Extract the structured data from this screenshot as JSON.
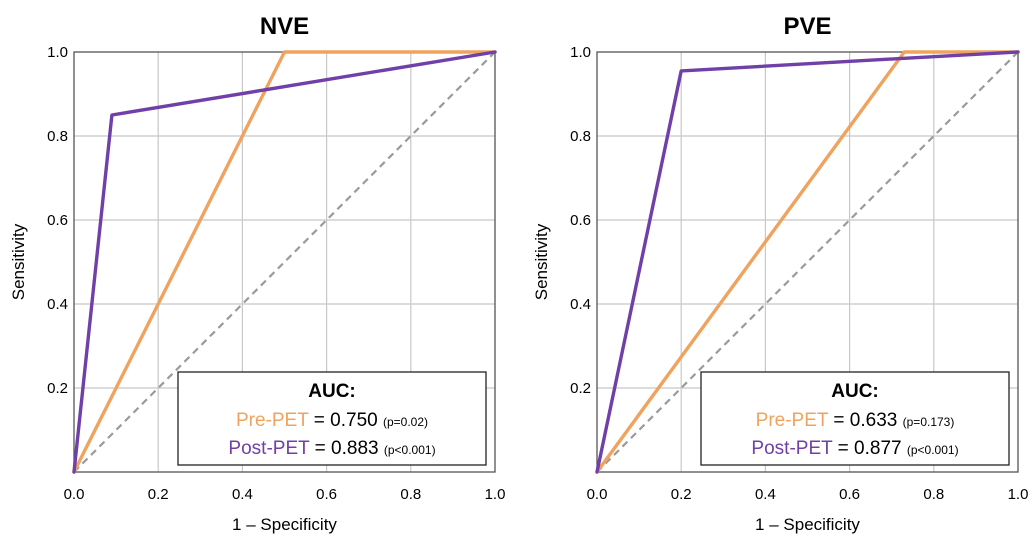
{
  "chart_data": [
    {
      "type": "line",
      "title": "NVE",
      "xlabel": "1 – Specificity",
      "ylabel": "Sensitivity",
      "xlim": [
        0,
        1
      ],
      "ylim": [
        0,
        1
      ],
      "x_ticks": [
        "0.0",
        "0.2",
        "0.4",
        "0.6",
        "0.8",
        "1.0"
      ],
      "y_ticks": [
        "0.2",
        "0.4",
        "0.6",
        "0.8",
        "1.0"
      ],
      "grid": true,
      "series": [
        {
          "key": "pre",
          "color": "#f0a35e",
          "points": [
            [
              0,
              0
            ],
            [
              0.5,
              1.0
            ],
            [
              1.0,
              1.0
            ]
          ]
        },
        {
          "key": "post",
          "color": "#7040a8",
          "points": [
            [
              0,
              0
            ],
            [
              0.09,
              0.85
            ],
            [
              1.0,
              1.0
            ]
          ]
        }
      ],
      "reference_line": [
        [
          0,
          0
        ],
        [
          1,
          1
        ]
      ],
      "legend": {
        "placement": "bottom-right",
        "title": "AUC:",
        "entries": [
          {
            "name": "Pre-PET",
            "eq": " = 0.750 ",
            "p": "(p=0.02)",
            "color": "#f0a35e"
          },
          {
            "name": "Post-PET",
            "eq": " = 0.883 ",
            "p": "(p<0.001)",
            "color": "#7040a8"
          }
        ]
      }
    },
    {
      "type": "line",
      "title": "PVE",
      "xlabel": "1 – Specificity",
      "ylabel": "Sensitivity",
      "xlim": [
        0,
        1
      ],
      "ylim": [
        0,
        1
      ],
      "x_ticks": [
        "0.0",
        "0.2",
        "0.4",
        "0.6",
        "0.8",
        "1.0"
      ],
      "y_ticks": [
        "0.2",
        "0.4",
        "0.6",
        "0.8",
        "1.0"
      ],
      "grid": true,
      "series": [
        {
          "key": "pre",
          "color": "#f0a35e",
          "points": [
            [
              0,
              0
            ],
            [
              0.73,
              1.0
            ],
            [
              1.0,
              1.0
            ]
          ]
        },
        {
          "key": "post",
          "color": "#7040a8",
          "points": [
            [
              0,
              0
            ],
            [
              0.2,
              0.955
            ],
            [
              0.73,
              0.985
            ],
            [
              1.0,
              1.0
            ]
          ]
        }
      ],
      "reference_line": [
        [
          0,
          0
        ],
        [
          1,
          1
        ]
      ],
      "legend": {
        "placement": "bottom-right",
        "title": "AUC:",
        "entries": [
          {
            "name": "Pre-PET",
            "eq": " = 0.633 ",
            "p": "(p=0.173)",
            "color": "#f0a35e"
          },
          {
            "name": "Post-PET",
            "eq": " = 0.877 ",
            "p": "(p<0.001)",
            "color": "#7040a8"
          }
        ]
      }
    }
  ]
}
